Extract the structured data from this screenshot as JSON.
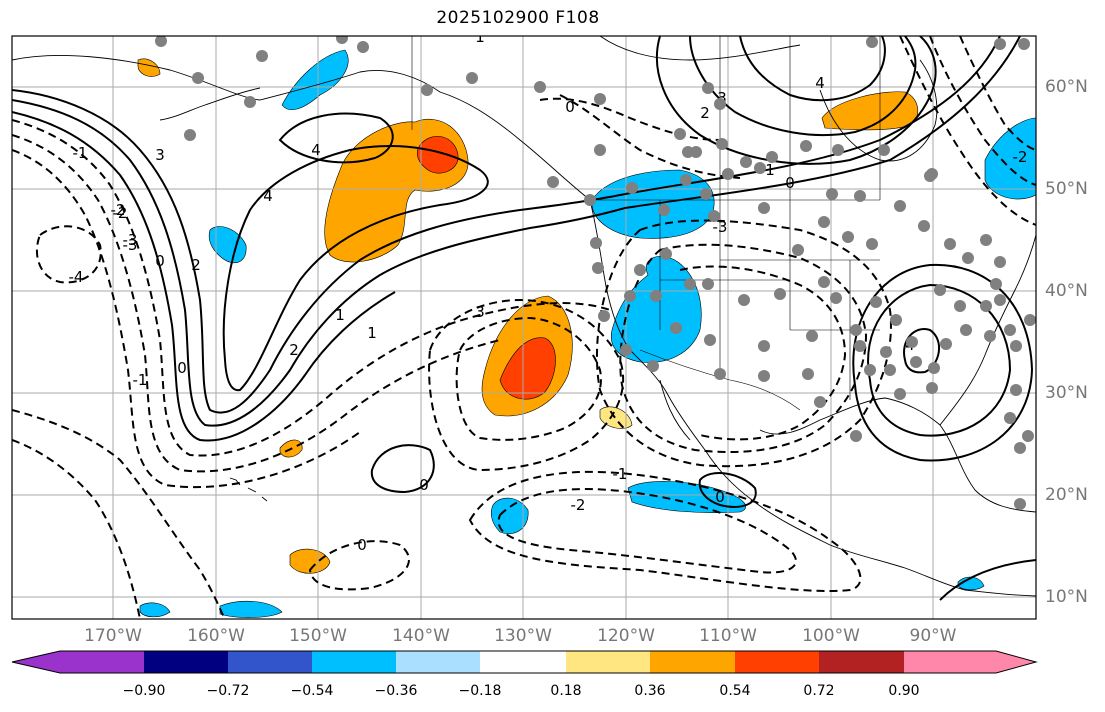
{
  "title": "2025102900 F108",
  "longitude_labels": [
    "170°W",
    "160°W",
    "150°W",
    "140°W",
    "130°W",
    "120°W",
    "110°W",
    "100°W",
    "90°W"
  ],
  "latitude_labels": [
    "60°N",
    "50°N",
    "40°N",
    "30°N",
    "20°N",
    "10°N"
  ],
  "contour_labels": [
    "4",
    "4",
    "3",
    "2",
    "1",
    "0",
    "-1",
    "-2",
    "-3",
    "-4",
    "3",
    "2",
    "1",
    "0",
    "-1",
    "-2",
    "-3",
    "0",
    "0",
    "0",
    "1",
    "2",
    "3",
    "4",
    "-1",
    "-2",
    "-3",
    "4",
    "0",
    "0",
    "-2",
    "1"
  ],
  "colorbar": {
    "tick_labels": [
      "−0.90",
      "−0.72",
      "−0.54",
      "−0.36",
      "−0.18",
      "0.18",
      "0.36",
      "0.54",
      "0.72",
      "0.90"
    ],
    "colors": [
      "#9933cc",
      "#000080",
      "#3355cc",
      "#00bfff",
      "#aadfff",
      "#ffffff",
      "#ffe680",
      "#ffa500",
      "#ff4000",
      "#b22222",
      "#ff88aa"
    ]
  },
  "legend": {
    "positive_fill": "#ffa500",
    "strong_positive_fill": "#ff4000",
    "negative_fill": "#00bfff",
    "marker_color": "#808080"
  }
}
